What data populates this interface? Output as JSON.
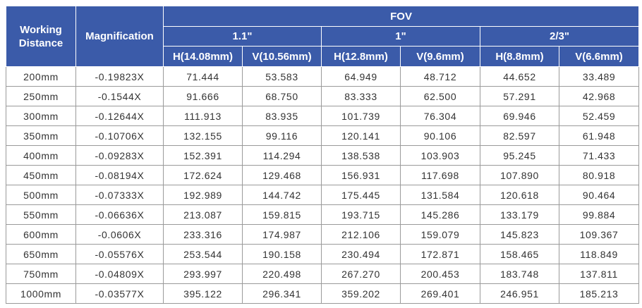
{
  "table": {
    "header": {
      "working_distance": "Working Distance",
      "magnification": "Magnification",
      "fov": "FOV",
      "sizes": [
        "1.1\"",
        "1\"",
        "2/3\""
      ],
      "axes": [
        "H(14.08mm)",
        "V(10.56mm)",
        "H(12.8mm)",
        "V(9.6mm)",
        "H(8.8mm)",
        "V(6.6mm)"
      ]
    },
    "rows": [
      [
        "200mm",
        "-0.19823X",
        "71.444",
        "53.583",
        "64.949",
        "48.712",
        "44.652",
        "33.489"
      ],
      [
        "250mm",
        "-0.1544X",
        "91.666",
        "68.750",
        "83.333",
        "62.500",
        "57.291",
        "42.968"
      ],
      [
        "300mm",
        "-0.12644X",
        "111.913",
        "83.935",
        "101.739",
        "76.304",
        "69.946",
        "52.459"
      ],
      [
        "350mm",
        "-0.10706X",
        "132.155",
        "99.116",
        "120.141",
        "90.106",
        "82.597",
        "61.948"
      ],
      [
        "400mm",
        "-0.09283X",
        "152.391",
        "114.294",
        "138.538",
        "103.903",
        "95.245",
        "71.433"
      ],
      [
        "450mm",
        "-0.08194X",
        "172.624",
        "129.468",
        "156.931",
        "117.698",
        "107.890",
        "80.918"
      ],
      [
        "500mm",
        "-0.07333X",
        "192.989",
        "144.742",
        "175.445",
        "131.584",
        "120.618",
        "90.464"
      ],
      [
        "550mm",
        "-0.06636X",
        "213.087",
        "159.815",
        "193.715",
        "145.286",
        "133.179",
        "99.884"
      ],
      [
        "600mm",
        "-0.0606X",
        "233.316",
        "174.987",
        "212.106",
        "159.079",
        "145.823",
        "109.367"
      ],
      [
        "650mm",
        "-0.05576X",
        "253.544",
        "190.158",
        "230.494",
        "172.871",
        "158.465",
        "118.849"
      ],
      [
        "750mm",
        "-0.04809X",
        "293.997",
        "220.498",
        "267.270",
        "200.453",
        "183.748",
        "137.811"
      ],
      [
        "1000mm",
        "-0.03577X",
        "395.122",
        "296.341",
        "359.202",
        "269.401",
        "246.951",
        "185.213"
      ]
    ]
  }
}
